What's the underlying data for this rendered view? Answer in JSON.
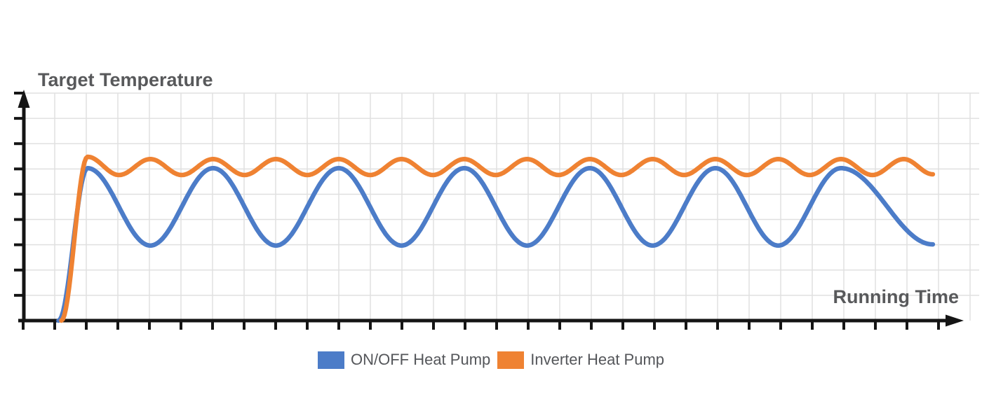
{
  "chart_data": {
    "type": "line",
    "title": "Target Temperature",
    "xlabel": "Running Time",
    "ylabel": "Target Temperature",
    "axis_tick_labels": "none (conceptual chart, unlabeled ticks)",
    "axis_ranges": {
      "x": [
        0,
        100
      ],
      "y": [
        0,
        100
      ]
    },
    "units": "relative (0-100 of plot width / height)",
    "grid": true,
    "legend_position": "bottom-center",
    "interpolation": "cosine-between-extrema",
    "series": [
      {
        "name": "ON/OFF Heat Pump",
        "color": "#4C7CC8",
        "behavior": "fast startup rise, then large slow oscillation around target; ends mid-descent",
        "points": [
          [
            3.7,
            0
          ],
          [
            6.8,
            67
          ],
          [
            13.5,
            33
          ],
          [
            20.2,
            67
          ],
          [
            26.9,
            33
          ],
          [
            33.6,
            67
          ],
          [
            40.3,
            33
          ],
          [
            47.0,
            67
          ],
          [
            53.7,
            33
          ],
          [
            60.4,
            67
          ],
          [
            67.1,
            33
          ],
          [
            73.8,
            67
          ],
          [
            80.5,
            33
          ],
          [
            87.2,
            67
          ],
          [
            97.0,
            33.5
          ]
        ]
      },
      {
        "name": "Inverter Heat Pump",
        "color": "#EF8232",
        "behavior": "fast startup rise with slight overshoot, then small ripple held near target",
        "points": [
          [
            4.0,
            0
          ],
          [
            6.8,
            72
          ],
          [
            10.15,
            64
          ],
          [
            13.5,
            71
          ],
          [
            16.85,
            64
          ],
          [
            20.2,
            71
          ],
          [
            23.55,
            64
          ],
          [
            26.9,
            71
          ],
          [
            30.25,
            64
          ],
          [
            33.6,
            71
          ],
          [
            36.95,
            64
          ],
          [
            40.3,
            71
          ],
          [
            43.65,
            64
          ],
          [
            47.0,
            71
          ],
          [
            50.35,
            64
          ],
          [
            53.7,
            71
          ],
          [
            57.05,
            64
          ],
          [
            60.4,
            71
          ],
          [
            63.75,
            64
          ],
          [
            67.1,
            71
          ],
          [
            70.45,
            64
          ],
          [
            73.8,
            71
          ],
          [
            77.15,
            64
          ],
          [
            80.5,
            71
          ],
          [
            83.85,
            64
          ],
          [
            87.2,
            71
          ],
          [
            90.55,
            64
          ],
          [
            93.9,
            71
          ],
          [
            97.0,
            64.3
          ]
        ]
      }
    ]
  },
  "style": {
    "background": "#ffffff",
    "axis_color": "#151515",
    "grid_color": "#e0e0e0",
    "title_color": "#58595b",
    "legend_text_color": "#54565a",
    "curve_width": 6.5
  }
}
